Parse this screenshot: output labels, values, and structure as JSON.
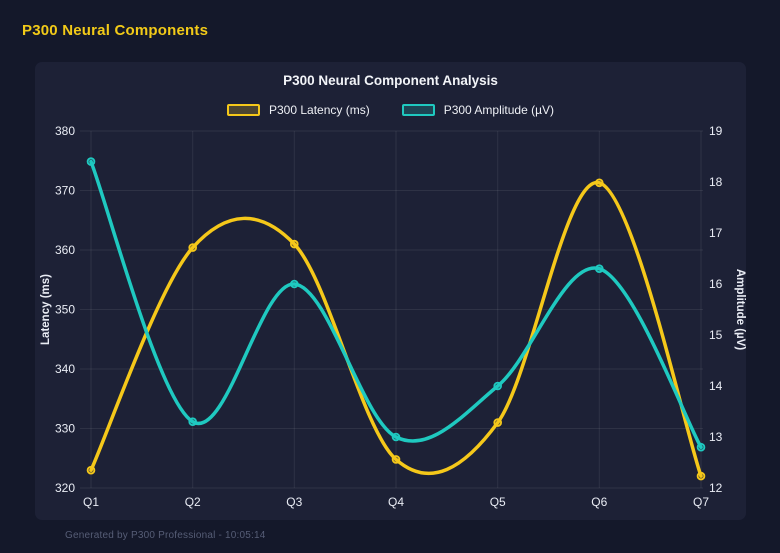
{
  "header": {
    "title": "P300 Neural Components"
  },
  "footer": {
    "text": "Generated by P300 Professional - 10:05:14"
  },
  "colors": {
    "page_background": "#14182a",
    "card_background": "#1d2136",
    "header_accent": "#f2ca18",
    "latency_series": "#f5c81a",
    "amplitude_series": "#1fc9c0",
    "grid_line": "rgba(255,255,255,0.08)",
    "tick_text": "#e9ecf4",
    "footer_text": "#565d76"
  },
  "chart_data": {
    "type": "line",
    "title": "P300 Neural Component Analysis",
    "categories": [
      "Q1",
      "Q2",
      "Q3",
      "Q4",
      "Q5",
      "Q6",
      "Q7"
    ],
    "series": [
      {
        "name": "P300 Latency (ms)",
        "axis": "left",
        "color": "#f5c81a",
        "values": [
          323,
          360.4,
          361,
          324.8,
          331,
          371.3,
          322
        ]
      },
      {
        "name": "P300 Amplitude (µV)",
        "axis": "right",
        "color": "#1fc9c0",
        "values": [
          18.4,
          13.3,
          16.0,
          13.0,
          14.0,
          16.3,
          12.8
        ]
      }
    ],
    "left_axis": {
      "label": "Latency (ms)",
      "min": 320,
      "max": 380,
      "ticks": [
        320,
        330,
        340,
        350,
        360,
        370,
        380
      ]
    },
    "right_axis": {
      "label": "Amplitude (µV)",
      "min": 12,
      "max": 19,
      "ticks": [
        12,
        13,
        14,
        15,
        16,
        17,
        18,
        19
      ]
    },
    "xlabel": "",
    "grid": true,
    "legend_position": "top",
    "smooth": true
  }
}
